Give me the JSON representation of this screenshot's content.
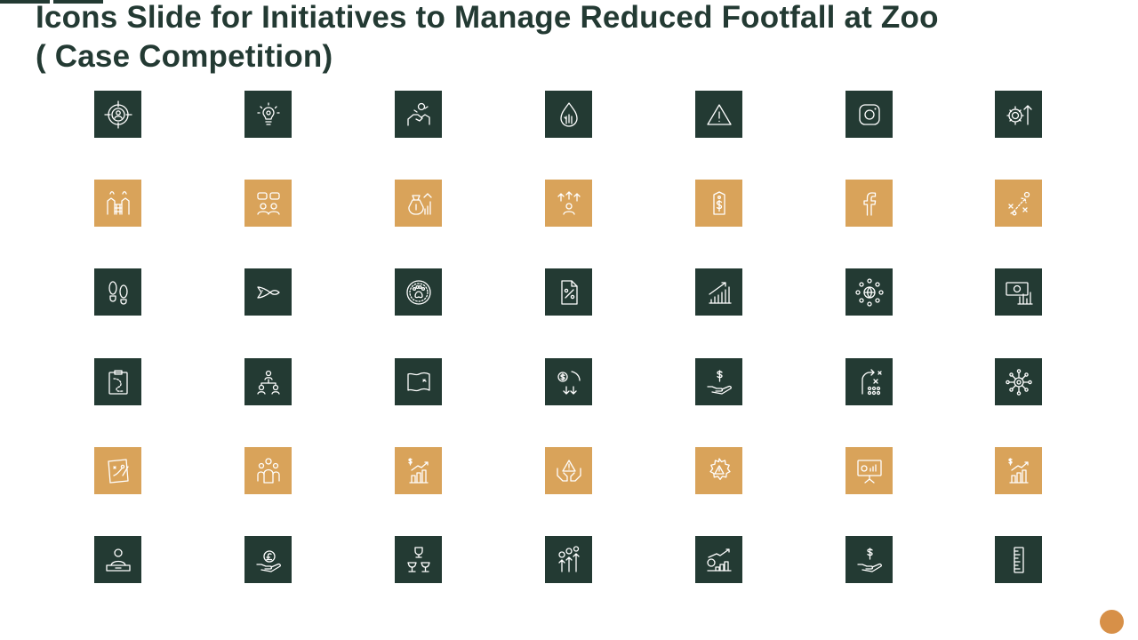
{
  "slide": {
    "title_line1": "Icons Slide for Initiatives to Manage Reduced Footfall at Zoo",
    "title_line2": "( Case Competition)"
  },
  "colors": {
    "dark": "#233a33",
    "gold": "#d9a35a",
    "accent_dot": "#d79048",
    "icon_stroke": "#ffffff"
  },
  "rows": [
    {
      "tone": "dark",
      "icons": [
        "target-user-icon",
        "lightbulb-gear-icon",
        "handshake-idea-icon",
        "hand-in-drop-icon",
        "warning-triangle-icon",
        "instagram-icon",
        "gear-dollar-arrow-icon"
      ]
    },
    {
      "tone": "gold",
      "icons": [
        "zoo-gate-icon",
        "discussion-people-icon",
        "money-bag-growth-icon",
        "people-growth-icon",
        "price-tag-icon",
        "facebook-icon",
        "strategy-play-icon"
      ]
    },
    {
      "tone": "dark",
      "icons": [
        "footprints-icon",
        "fish-arrow-icon",
        "paw-circle-icon",
        "percent-document-icon",
        "bar-chart-growth-icon",
        "globe-network-icon",
        "banknote-chart-icon"
      ]
    },
    {
      "tone": "dark",
      "icons": [
        "clipboard-plan-icon",
        "hierarchy-people-icon",
        "map-flag-icon",
        "dollar-decline-icon",
        "hand-dollar-icon",
        "strategy-path-icon",
        "gear-network-icon"
      ]
    },
    {
      "tone": "gold",
      "icons": [
        "planning-board-icon",
        "team-group-icon",
        "dollar-growth-chart-icon",
        "hands-warning-icon",
        "gear-warning-icon",
        "presentation-board-icon",
        "dollar-growth-chart-icon-2"
      ]
    },
    {
      "tone": "dark",
      "icons": [
        "person-desk-icon",
        "hand-pound-icon",
        "trophy-podium-icon",
        "money-growth-arrows-icon",
        "stacked-coins-growth-icon",
        "hand-dollar-icon-2",
        "ruler-icon"
      ]
    }
  ]
}
